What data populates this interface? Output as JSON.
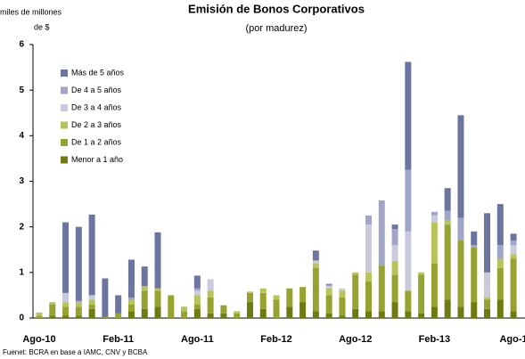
{
  "chart_data": {
    "type": "bar",
    "stacked": true,
    "title": "Emisión de Bonos Corporativos",
    "subtitle": "(por madurez)",
    "y_label": [
      "miles de millones",
      "de $"
    ],
    "source": "Fuenet: BCRA en base a IAMC, CNV y BCBA",
    "categories": [
      "Ago-10",
      null,
      null,
      null,
      null,
      null,
      "Feb-11",
      null,
      null,
      null,
      null,
      null,
      "Ago-11",
      null,
      null,
      null,
      null,
      null,
      "Feb-12",
      null,
      null,
      null,
      null,
      null,
      "Ago-12",
      null,
      null,
      null,
      null,
      null,
      "Feb-13",
      null,
      null,
      null,
      null,
      null,
      "Ago-1"
    ],
    "ylim": [
      0,
      6
    ],
    "yticks": [
      0,
      1,
      2,
      3,
      4,
      5,
      6
    ],
    "grid": false,
    "legend": "top-left",
    "series": [
      {
        "name": "Menor a 1 año",
        "color": "#6e7a12",
        "values": [
          0,
          0.05,
          0.05,
          0.05,
          0.2,
          0,
          0,
          0.15,
          0.2,
          0.25,
          0,
          0,
          0.2,
          0.1,
          0.1,
          0,
          0.35,
          0.2,
          0,
          0.25,
          0.35,
          0.15,
          0.1,
          0.05,
          0.2,
          0.15,
          0.15,
          0.35,
          0.15,
          0.1,
          0.25,
          0.4,
          0.25,
          0.35,
          0.2,
          0.4,
          0.15
        ]
      },
      {
        "name": "De 1 a 2 años",
        "color": "#97a330",
        "values": [
          0.05,
          0.25,
          0.2,
          0.2,
          0.1,
          0.02,
          0.1,
          0.15,
          0.4,
          0.35,
          0.5,
          0.15,
          0.1,
          0.35,
          0.18,
          0.1,
          0.2,
          0.35,
          0.4,
          0.4,
          0.33,
          0.95,
          0.4,
          0.4,
          0.75,
          0.65,
          1.0,
          0.6,
          0.45,
          0.85,
          0.95,
          1.65,
          1.45,
          1.2,
          0.2,
          0.7,
          1.15
        ]
      },
      {
        "name": "De 2 a 3 años",
        "color": "#b7c45c",
        "values": [
          0.07,
          0.05,
          0.1,
          0.1,
          0.1,
          0,
          0,
          0.1,
          0.1,
          0.05,
          0,
          0.1,
          0.2,
          0.15,
          0,
          0.05,
          0.03,
          0.1,
          0.1,
          0,
          0,
          0.1,
          0.15,
          0.15,
          0.05,
          0.2,
          0,
          0.3,
          0,
          0.05,
          0.9,
          0.1,
          0,
          0,
          0.05,
          0.2,
          0.1
        ]
      },
      {
        "name": "De 3 a 4 años",
        "color": "#c9cbdc",
        "values": [
          0,
          0,
          0.2,
          0,
          0.1,
          0,
          0,
          0,
          0,
          0,
          0,
          0,
          0.1,
          0.25,
          0,
          0,
          0,
          0,
          0,
          0,
          0,
          0.05,
          0.05,
          0.05,
          0,
          1.05,
          0,
          0.35,
          1.3,
          0,
          0.15,
          0,
          0,
          0,
          0.55,
          0,
          0.2
        ]
      },
      {
        "name": "De 4 a 5 años",
        "color": "#a1a6c9",
        "values": [
          0,
          0,
          0,
          0.03,
          0,
          0,
          0,
          0.05,
          0,
          0,
          0,
          0,
          0.05,
          0,
          0,
          0,
          0,
          0,
          0,
          0,
          0,
          0.02,
          0.03,
          0,
          0,
          0.2,
          1.43,
          0.35,
          1.35,
          0,
          0.08,
          0.2,
          0.5,
          0.05,
          0,
          0.3,
          0.1
        ]
      },
      {
        "name": "Más de 5 años",
        "color": "#6b75a0",
        "values": [
          0,
          0,
          1.55,
          1.62,
          1.77,
          0.85,
          0.4,
          0.83,
          0.43,
          1.23,
          0,
          0,
          0.28,
          0,
          0,
          0,
          0,
          0,
          0,
          0,
          0,
          0.21,
          0.02,
          0,
          0,
          0,
          0,
          0.1,
          2.37,
          0,
          0,
          0.5,
          2.25,
          0.3,
          1.3,
          0.9,
          0.15
        ]
      }
    ]
  }
}
